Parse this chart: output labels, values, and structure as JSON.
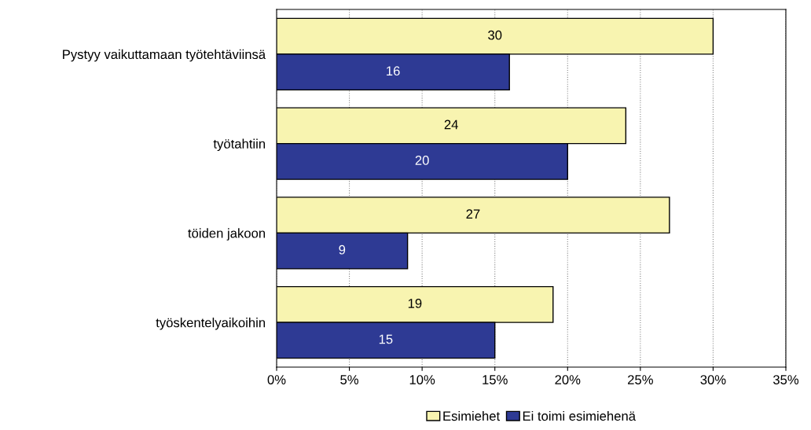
{
  "chart_data": {
    "type": "bar",
    "orientation": "horizontal",
    "categories": [
      "Pystyy vaikuttamaan työtehtäviinsä",
      "työtahtiin",
      "töiden jakoon",
      "työskentelyaikoihin"
    ],
    "series": [
      {
        "name": "Esimiehet",
        "color": "#f8f4b0",
        "values": [
          30,
          24,
          27,
          19
        ]
      },
      {
        "name": "Ei toimi esimiehenä",
        "color": "#2e3a94",
        "values": [
          16,
          20,
          9,
          15
        ]
      }
    ],
    "xlim": [
      0,
      35
    ],
    "xticks": [
      {
        "value": 0,
        "label": "0%"
      },
      {
        "value": 5,
        "label": "5%"
      },
      {
        "value": 10,
        "label": "10%"
      },
      {
        "value": 15,
        "label": "15%"
      },
      {
        "value": 20,
        "label": "20%"
      },
      {
        "value": 25,
        "label": "25%"
      },
      {
        "value": 30,
        "label": "30%"
      },
      {
        "value": 35,
        "label": "35%"
      }
    ],
    "grid": "x",
    "legend": "bottom",
    "data_labels": true
  }
}
